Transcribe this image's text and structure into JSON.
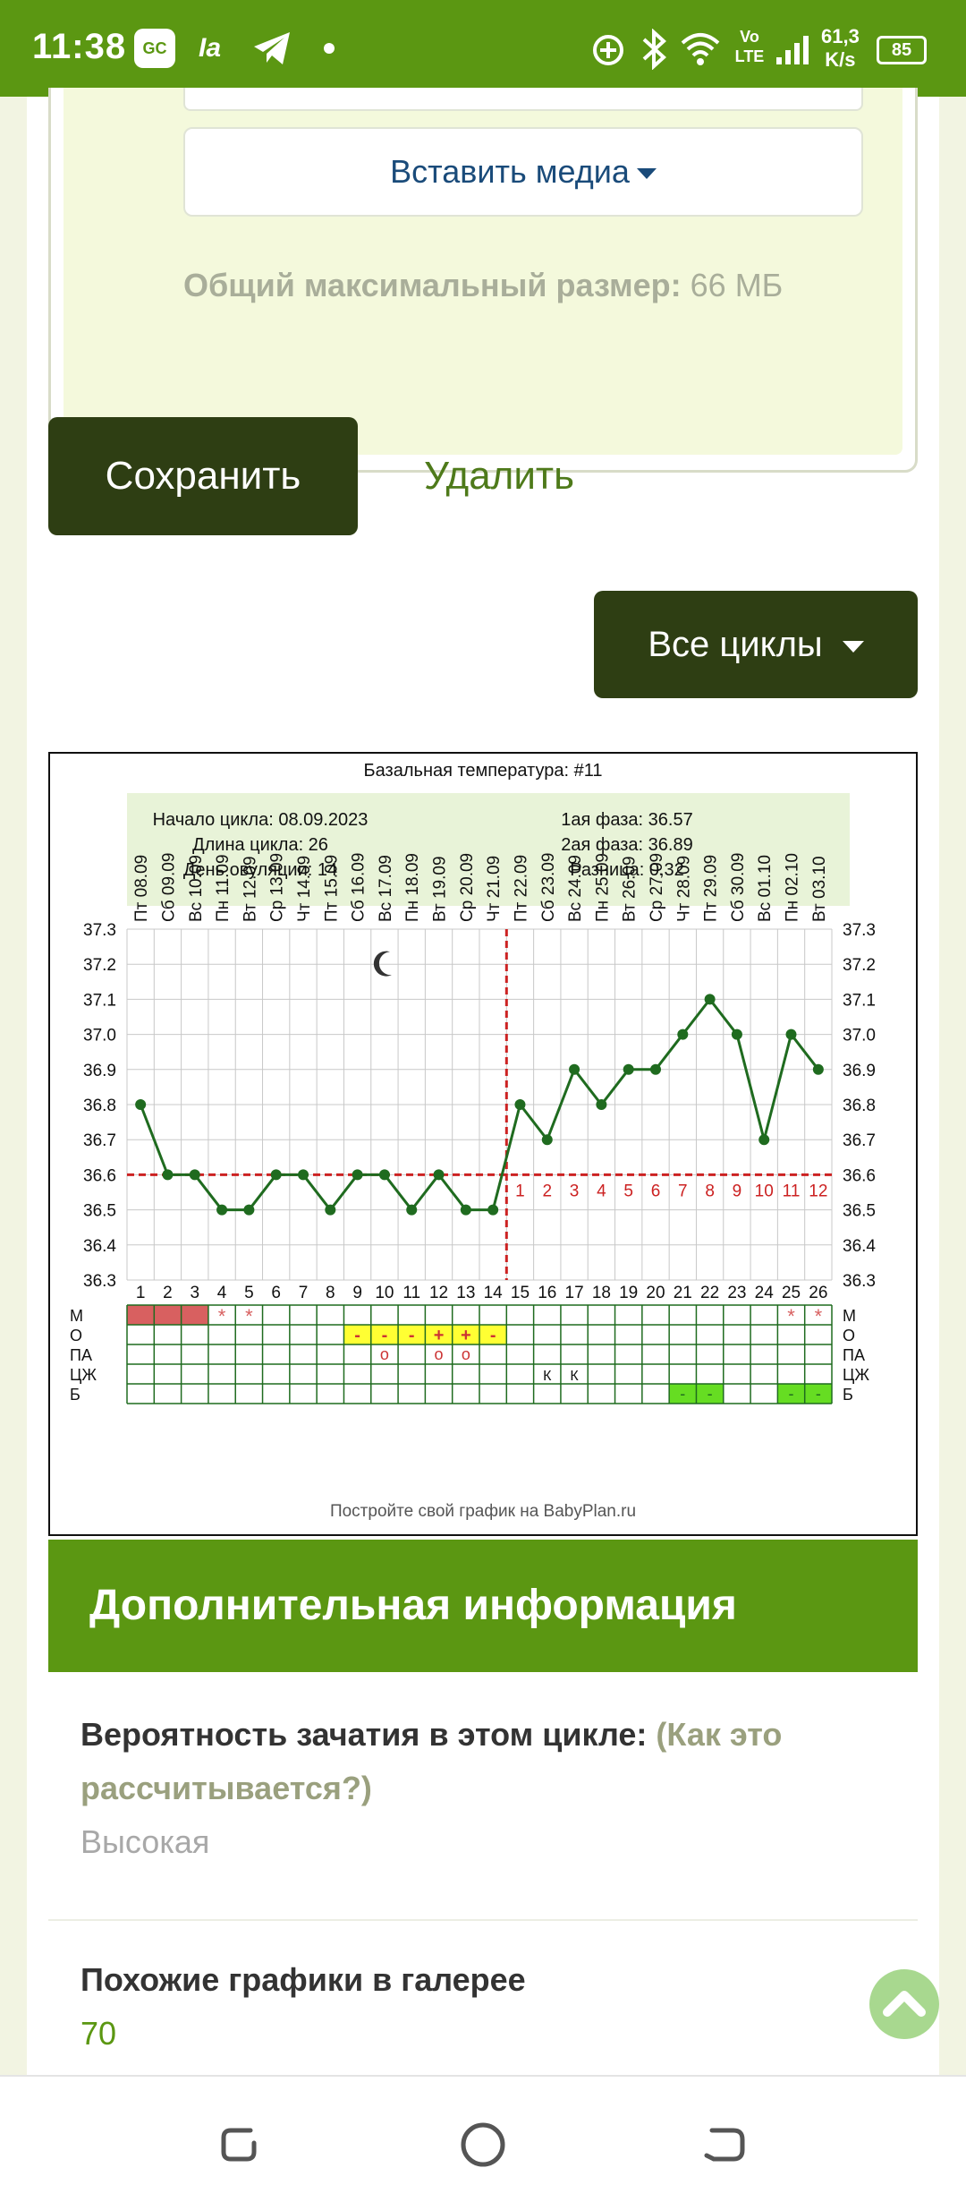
{
  "status_bar": {
    "time": "11:38",
    "app_icon": "GC",
    "carrier_icon": "Ia",
    "network": "Vo LTE",
    "speed_value": "61,3",
    "speed_unit": "K/s",
    "battery": "85"
  },
  "media": {
    "insert_label": "Вставить медиа",
    "max_size_label": "Общий максимальный размер:",
    "max_size_value": " 66 МБ"
  },
  "actions": {
    "save_label": "Сохранить",
    "delete_label": "Удалить",
    "all_cycles_label": "Все циклы"
  },
  "chart": {
    "title": "Базальная температура: #11",
    "summary": {
      "cycle_start": "Начало цикла: 08.09.2023",
      "cycle_length": "Длина цикла: 26",
      "ovulation_day": "День овуляции: 14",
      "phase1": "1ая фаза: 36.57",
      "phase2": "2ая фаза: 36.89",
      "difference": "Разница: 0,32"
    },
    "footer": "Постройте свой график на BabyPlan.ru",
    "row_labels": [
      "М",
      "О",
      "ПА",
      "ЦЖ",
      "Б"
    ],
    "phase2_labels": [
      "1",
      "2",
      "3",
      "4",
      "5",
      "6",
      "7",
      "8",
      "9",
      "10",
      "11",
      "12"
    ],
    "colors": {
      "line": "#1f6b1f",
      "coverline": "#cc2222",
      "menses": "#d86060",
      "yellow": "#ffff33",
      "green": "#66dd22"
    }
  },
  "chart_data": {
    "type": "line",
    "title": "Базальная температура: #11",
    "x": [
      1,
      2,
      3,
      4,
      5,
      6,
      7,
      8,
      9,
      10,
      11,
      12,
      13,
      14,
      15,
      16,
      17,
      18,
      19,
      20,
      21,
      22,
      23,
      24,
      25,
      26
    ],
    "dates": [
      "Пт 08.09",
      "Сб 09.09",
      "Вс 10.09",
      "Пн 11.09",
      "Вт 12.09",
      "Ср 13.09",
      "Чт 14.09",
      "Пт 15.09",
      "Сб 16.09",
      "Вс 17.09",
      "Пн 18.09",
      "Вт 19.09",
      "Ср 20.09",
      "Чт 21.09",
      "Пт 22.09",
      "Сб 23.09",
      "Вс 24.09",
      "Пн 25.09",
      "Вт 26.09",
      "Ср 27.09",
      "Чт 28.09",
      "Пт 29.09",
      "Сб 30.09",
      "Вс 01.10",
      "Пн 02.10",
      "Вт 03.10"
    ],
    "series": [
      {
        "values": [
          36.8,
          36.6,
          36.6,
          36.5,
          36.5,
          36.6,
          36.6,
          36.5,
          36.6,
          36.6,
          36.5,
          36.6,
          36.5,
          36.5,
          36.8,
          36.7,
          36.9,
          36.8,
          36.9,
          36.9,
          37.0,
          37.1,
          37.0,
          36.7,
          37.0,
          36.9
        ]
      }
    ],
    "ylim": [
      36.3,
      37.3
    ],
    "yticks": [
      "37.3",
      "37.2",
      "37.1",
      "37.0",
      "36.9",
      "36.8",
      "36.7",
      "36.6",
      "36.5",
      "36.4",
      "36.3"
    ],
    "coverline": 36.6,
    "ovulation_day": 14,
    "grid": true,
    "annotations": {
      "menses_days": [
        1,
        2,
        3
      ],
      "menses_star_days": [
        4,
        5,
        25,
        26
      ],
      "o_marks": [
        {
          "day": 9,
          "mark": "-"
        },
        {
          "day": 10,
          "mark": "-"
        },
        {
          "day": 11,
          "mark": "-"
        },
        {
          "day": 12,
          "mark": "+"
        },
        {
          "day": 13,
          "mark": "+"
        },
        {
          "day": 14,
          "mark": "-"
        }
      ],
      "pa_marks": [
        {
          "day": 10,
          "mark": "о"
        },
        {
          "day": 12,
          "mark": "о"
        },
        {
          "day": 13,
          "mark": "о"
        }
      ],
      "cj_marks": [
        {
          "day": 16,
          "mark": "К"
        },
        {
          "day": 17,
          "mark": "К"
        }
      ],
      "b_marks": [
        {
          "day": 21,
          "mark": "-"
        },
        {
          "day": 22,
          "mark": "-"
        },
        {
          "day": 25,
          "mark": "-"
        },
        {
          "day": 26,
          "mark": "-"
        }
      ],
      "moon_day": 10
    }
  },
  "info": {
    "heading": "Дополнительная информация",
    "probability_label": "Вероятность зачатия в этом цикле:",
    "probability_link": " (Как это рассчитывается?)",
    "probability_value": "Высокая",
    "similar_label": "Похожие графики в галерее",
    "similar_value": "70"
  }
}
